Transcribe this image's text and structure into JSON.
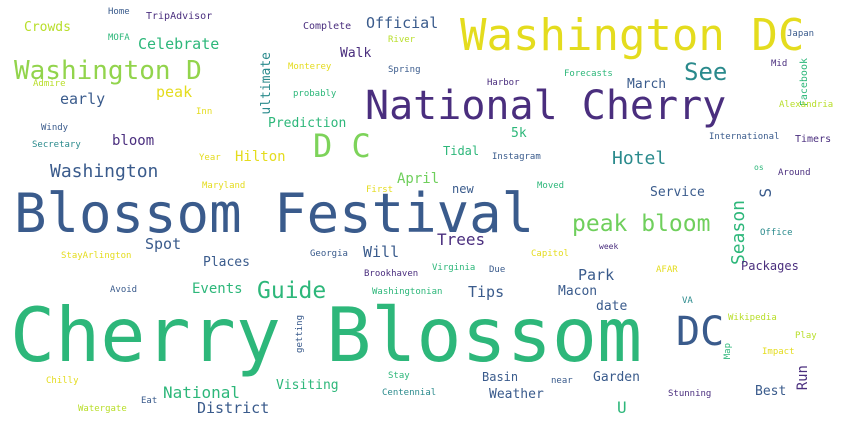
{
  "words": [
    {
      "text": "Cherry Blossom",
      "color": "#2db77a"
    },
    {
      "text": "Blossom Festival",
      "color": "#3a5b8c"
    },
    {
      "text": "Washington DC",
      "color": "#e4dc1e"
    },
    {
      "text": "National Cherry",
      "color": "#4a2e7e"
    },
    {
      "text": "Washington D",
      "color": "#92d44c"
    },
    {
      "text": "D C",
      "color": "#7dd35a"
    },
    {
      "text": "DC",
      "color": "#3a5b8c"
    },
    {
      "text": "peak bloom",
      "color": "#6fcf5c"
    },
    {
      "text": "Guide",
      "color": "#2db77a"
    },
    {
      "text": "See",
      "color": "#2a8a8c"
    },
    {
      "text": "Washington",
      "color": "#3a5b8c"
    },
    {
      "text": "Hotel",
      "color": "#2a8a8c"
    },
    {
      "text": "Season",
      "color": "#2db77a"
    },
    {
      "text": "S",
      "color": "#3a5b8c"
    },
    {
      "text": "Official",
      "color": "#3a5b8c"
    },
    {
      "text": "Celebrate",
      "color": "#2db77a"
    },
    {
      "text": "early",
      "color": "#3a5b8c"
    },
    {
      "text": "peak",
      "color": "#e4dc1e"
    },
    {
      "text": "Walk",
      "color": "#4a2e7e"
    },
    {
      "text": "March",
      "color": "#3a5b8c"
    },
    {
      "text": "Trees",
      "color": "#4a2e7e"
    },
    {
      "text": "Will",
      "color": "#3a5b8c"
    },
    {
      "text": "Spot",
      "color": "#3a5b8c"
    },
    {
      "text": "Park",
      "color": "#3a5b8c"
    },
    {
      "text": "Tips",
      "color": "#3a5b8c"
    },
    {
      "text": "April",
      "color": "#6fcf5c"
    },
    {
      "text": "bloom",
      "color": "#4a2e7e"
    },
    {
      "text": "Hilton",
      "color": "#e4dc1e"
    },
    {
      "text": "Prediction",
      "color": "#2db77a"
    },
    {
      "text": "Events",
      "color": "#2db77a"
    },
    {
      "text": "Places",
      "color": "#3a5b8c"
    },
    {
      "text": "National",
      "color": "#2db77a"
    },
    {
      "text": "District",
      "color": "#3a5b8c"
    },
    {
      "text": "Visiting",
      "color": "#2db77a"
    },
    {
      "text": "Weather",
      "color": "#3a5b8c"
    },
    {
      "text": "Basin",
      "color": "#3a5b8c"
    },
    {
      "text": "Garden",
      "color": "#3a5b8c"
    },
    {
      "text": "Run",
      "color": "#4a2e7e"
    },
    {
      "text": "Best",
      "color": "#3a5b8c"
    },
    {
      "text": "U",
      "color": "#2db77a"
    },
    {
      "text": "Packages",
      "color": "#4a2e7e"
    },
    {
      "text": "Service",
      "color": "#3a5b8c"
    },
    {
      "text": "Macon",
      "color": "#3a5b8c"
    },
    {
      "text": "date",
      "color": "#3a5b8c"
    },
    {
      "text": "new",
      "color": "#3a5b8c"
    },
    {
      "text": "5k",
      "color": "#2db77a"
    },
    {
      "text": "Tidal",
      "color": "#2db77a"
    },
    {
      "text": "ultimate",
      "color": "#2a8a8c"
    },
    {
      "text": "Crowds",
      "color": "#b8de29"
    },
    {
      "text": "Home",
      "color": "#3a5b8c"
    },
    {
      "text": "TripAdvisor",
      "color": "#4a2e7e"
    },
    {
      "text": "MOFA",
      "color": "#2db77a"
    },
    {
      "text": "Complete",
      "color": "#4a2e7e"
    },
    {
      "text": "River",
      "color": "#b8de29"
    },
    {
      "text": "Japan",
      "color": "#3a5b8c"
    },
    {
      "text": "Facebook",
      "color": "#2db77a"
    },
    {
      "text": "Mid",
      "color": "#4a2e7e"
    },
    {
      "text": "Admire",
      "color": "#b8de29"
    },
    {
      "text": "Monterey",
      "color": "#e4dc1e"
    },
    {
      "text": "Spring",
      "color": "#3a5b8c"
    },
    {
      "text": "Forecasts",
      "color": "#2db77a"
    },
    {
      "text": "Harbor",
      "color": "#4a2e7e"
    },
    {
      "text": "probably",
      "color": "#2db77a"
    },
    {
      "text": "Alexandria",
      "color": "#b8de29"
    },
    {
      "text": "Inn",
      "color": "#e4dc1e"
    },
    {
      "text": "Windy",
      "color": "#3a5b8c"
    },
    {
      "text": "Secretary",
      "color": "#2a8a8c"
    },
    {
      "text": "International",
      "color": "#3a5b8c"
    },
    {
      "text": "Timers",
      "color": "#4a2e7e"
    },
    {
      "text": "Year",
      "color": "#e4dc1e"
    },
    {
      "text": "Instagram",
      "color": "#3a5b8c"
    },
    {
      "text": "os",
      "color": "#2db77a"
    },
    {
      "text": "Around",
      "color": "#4a2e7e"
    },
    {
      "text": "Maryland",
      "color": "#e4dc1e"
    },
    {
      "text": "First",
      "color": "#e4dc1e"
    },
    {
      "text": "Moved",
      "color": "#2db77a"
    },
    {
      "text": "Office",
      "color": "#2a8a8c"
    },
    {
      "text": "week",
      "color": "#4a2e7e"
    },
    {
      "text": "Georgia",
      "color": "#3a5b8c"
    },
    {
      "text": "Capitol",
      "color": "#e4dc1e"
    },
    {
      "text": "StayArlington",
      "color": "#e4dc1e"
    },
    {
      "text": "Brookhaven",
      "color": "#4a2e7e"
    },
    {
      "text": "Virginia",
      "color": "#2db77a"
    },
    {
      "text": "Due",
      "color": "#3a5b8c"
    },
    {
      "text": "AFAR",
      "color": "#e4dc1e"
    },
    {
      "text": "Avoid",
      "color": "#3a5b8c"
    },
    {
      "text": "Washingtonian",
      "color": "#2db77a"
    },
    {
      "text": "VA",
      "color": "#2a8a8c"
    },
    {
      "text": "Wikipedia",
      "color": "#b8de29"
    },
    {
      "text": "getting",
      "color": "#3a5b8c"
    },
    {
      "text": "Map",
      "color": "#2db77a"
    },
    {
      "text": "Play",
      "color": "#b8de29"
    },
    {
      "text": "Impact",
      "color": "#e4dc1e"
    },
    {
      "text": "Chilly",
      "color": "#e4dc1e"
    },
    {
      "text": "Eat",
      "color": "#3a5b8c"
    },
    {
      "text": "Watergate",
      "color": "#b8de29"
    },
    {
      "text": "Stay",
      "color": "#2db77a"
    },
    {
      "text": "near",
      "color": "#3a5b8c"
    },
    {
      "text": "Centennial",
      "color": "#2a8a8c"
    },
    {
      "text": "Stunning",
      "color": "#4a2e7e"
    }
  ]
}
